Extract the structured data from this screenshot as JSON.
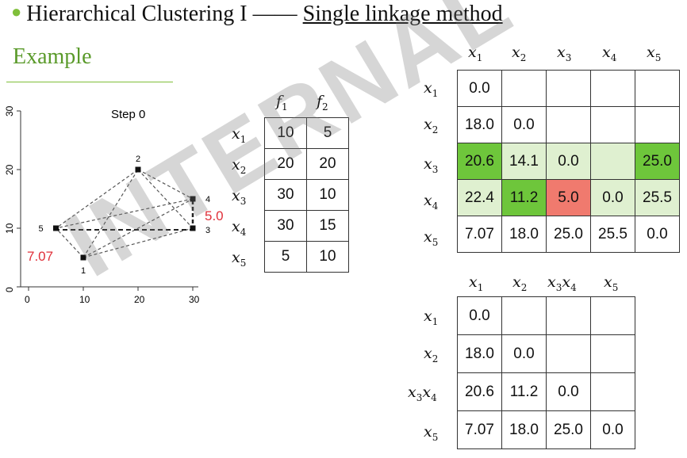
{
  "title": {
    "prefix": "Hierarchical Clustering I",
    "dash": "——",
    "method": "Single linkage method"
  },
  "subtitle": "Example",
  "watermark": "INTERNAL USE",
  "chart_data": {
    "type": "scatter",
    "title": "Step 0",
    "xticks": [
      "0",
      "10",
      "20",
      "30"
    ],
    "yticks": [
      "0",
      "10",
      "20",
      "30"
    ],
    "xlim": [
      0,
      30
    ],
    "ylim": [
      0,
      30
    ],
    "points": [
      {
        "label": "1",
        "x": 10,
        "y": 5
      },
      {
        "label": "2",
        "x": 20,
        "y": 20
      },
      {
        "label": "3",
        "x": 30,
        "y": 10
      },
      {
        "label": "4",
        "x": 30,
        "y": 15
      },
      {
        "label": "5",
        "x": 5,
        "y": 10
      }
    ],
    "annotations": [
      {
        "text": "7.07",
        "color": "#e0303a"
      },
      {
        "text": "5.0",
        "color": "#e0303a"
      }
    ]
  },
  "features": {
    "headers": [
      "f1",
      "f2"
    ],
    "rows": [
      {
        "label": "x1",
        "values": [
          "10",
          "5"
        ]
      },
      {
        "label": "x2",
        "values": [
          "20",
          "20"
        ]
      },
      {
        "label": "x3",
        "values": [
          "30",
          "10"
        ]
      },
      {
        "label": "x4",
        "values": [
          "30",
          "15"
        ]
      },
      {
        "label": "x5",
        "values": [
          "5",
          "10"
        ]
      }
    ]
  },
  "matrix1": {
    "headers": [
      "x1",
      "x2",
      "x3",
      "x4",
      "x5"
    ],
    "rows": [
      {
        "label": "x1",
        "cells": [
          "0.0",
          "",
          "",
          "",
          ""
        ]
      },
      {
        "label": "x2",
        "cells": [
          "18.0",
          "0.0",
          "",
          "",
          ""
        ]
      },
      {
        "label": "x3",
        "cells": [
          "20.6",
          "14.1",
          "0.0",
          "",
          "25.0"
        ]
      },
      {
        "label": "x4",
        "cells": [
          "22.4",
          "11.2",
          "5.0",
          "0.0",
          "25.5"
        ]
      },
      {
        "label": "x5",
        "cells": [
          "7.07",
          "18.0",
          "25.0",
          "25.5",
          "0.0"
        ]
      }
    ],
    "colors": {
      "dark_green": "#6ec63b",
      "light_green": "#dff0d0",
      "red": "#f07a6e"
    }
  },
  "matrix2": {
    "headers": [
      "x1",
      "x2",
      "x3x4",
      "x5"
    ],
    "rows": [
      {
        "label": "x1",
        "cells": [
          "0.0",
          "",
          "",
          ""
        ]
      },
      {
        "label": "x2",
        "cells": [
          "18.0",
          "0.0",
          "",
          ""
        ]
      },
      {
        "label": "x3x4",
        "cells": [
          "20.6",
          "11.2",
          "0.0",
          ""
        ]
      },
      {
        "label": "x5",
        "cells": [
          "7.07",
          "18.0",
          "25.0",
          "0.0"
        ]
      }
    ]
  }
}
